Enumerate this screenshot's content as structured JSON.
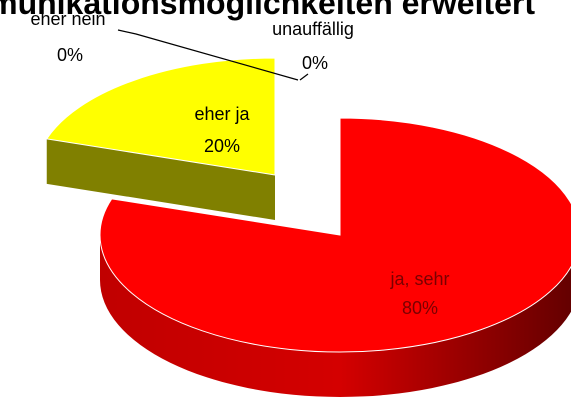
{
  "chart_data": {
    "type": "pie",
    "title": "Kommunikationsmöglichkeiten erweitert",
    "categories": [
      "ja, sehr",
      "eher ja",
      "eher nein",
      "unauffällig"
    ],
    "values": [
      80,
      20,
      0,
      0
    ],
    "value_labels": [
      "80%",
      "20%",
      "0%",
      "0%"
    ],
    "colors": [
      "#ff0000",
      "#ffff00",
      "#92d050",
      "#4472c4"
    ]
  }
}
